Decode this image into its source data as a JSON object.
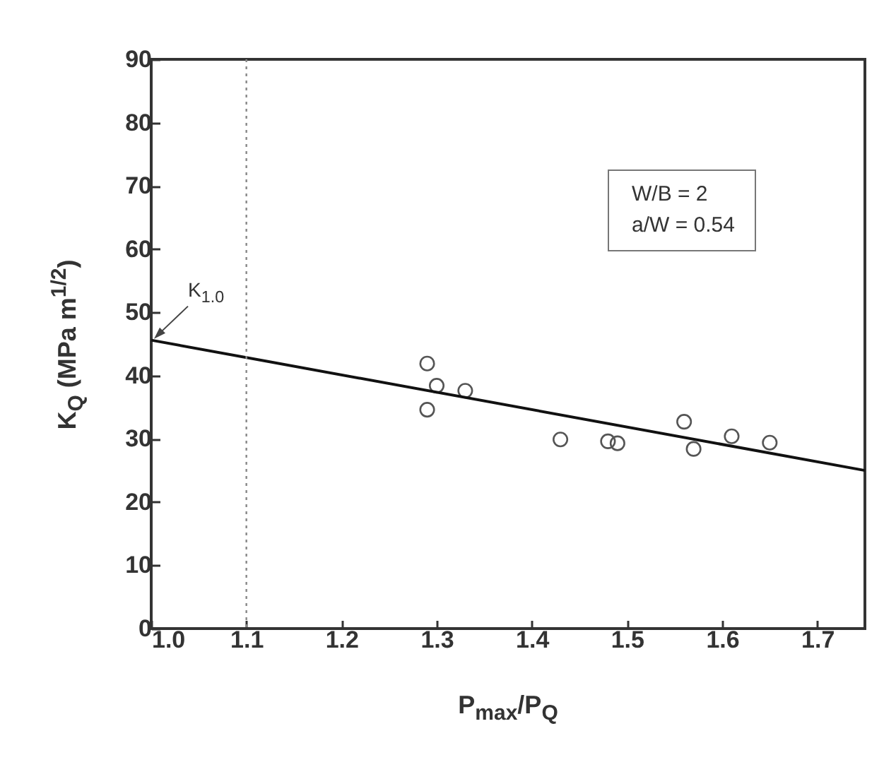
{
  "chart_data": {
    "type": "scatter",
    "xlabel": "P$_{max}$/P$_{Q}$",
    "ylabel": "K$_{Q}$ (MPa m$^{1/2}$)",
    "xlim": [
      1.0,
      1.75
    ],
    "ylim": [
      0,
      90
    ],
    "xticks": [
      {
        "value": 1.0,
        "label": "1.0"
      },
      1.1,
      1.2,
      1.3,
      1.4,
      1.5,
      1.6,
      1.7
    ],
    "yticks": [
      0,
      10,
      20,
      30,
      40,
      50,
      60,
      70,
      80,
      90
    ],
    "series": [
      {
        "color": "#555555",
        "marker": "circle",
        "x": [
          1.29,
          1.3,
          1.33,
          1.29,
          1.43,
          1.48,
          1.49,
          1.56,
          1.57,
          1.61,
          1.65
        ],
        "values": [
          41.9,
          38.4,
          37.6,
          34.6,
          29.9,
          29.6,
          29.3,
          32.7,
          28.4,
          30.4,
          29.4
        ]
      },
      {
        "type": "line",
        "color": "#111111",
        "marker": "none",
        "line_style": "solid",
        "x": [
          1.0,
          1.75
        ],
        "values": [
          45.6,
          25.0
        ]
      }
    ],
    "ref_lines": [
      {
        "axis": "x",
        "value": 1.1,
        "color": "#888888",
        "line_style": "dotted"
      }
    ],
    "annotations": [
      {
        "text": "K$_{1.0}$",
        "x": 1.0,
        "y": 45.6
      },
      "W/B = 2",
      "a/W = 0.54"
    ]
  }
}
